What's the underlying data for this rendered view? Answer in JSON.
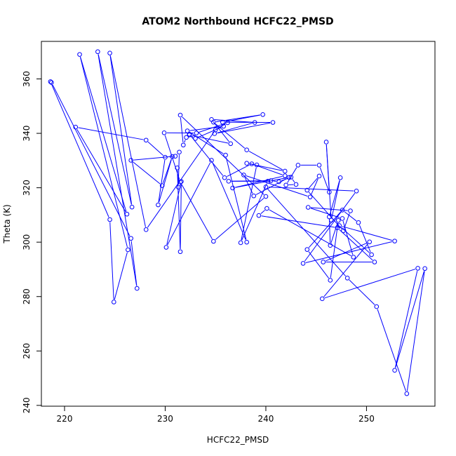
{
  "chart_data": {
    "type": "line",
    "title": "ATOM2 Northbound HCFC22_PMSD",
    "xlabel": "HCFC22_PMSD",
    "ylabel": "Theta (K)",
    "xlim": [
      217.7,
      256.8
    ],
    "ylim": [
      239.7,
      373.8
    ],
    "x_ticks": [
      220,
      230,
      240,
      250
    ],
    "y_ticks": [
      240,
      260,
      280,
      300,
      320,
      340,
      360
    ],
    "grid": false,
    "line_color": "#0000ff",
    "marker": "open-circle",
    "series": [
      {
        "points": [
          {
            "x": 218.6,
            "y": 359.0
          },
          {
            "x": 224.5,
            "y": 308.3
          },
          {
            "x": 224.9,
            "y": 278.0
          },
          {
            "x": 226.3,
            "y": 297.2
          },
          {
            "x": 221.5,
            "y": 369.0
          },
          {
            "x": 226.2,
            "y": 310.3
          },
          {
            "x": 221.1,
            "y": 342.3
          },
          {
            "x": 228.1,
            "y": 337.5
          },
          {
            "x": 230.0,
            "y": 331.2
          },
          {
            "x": 229.3,
            "y": 313.7
          },
          {
            "x": 230.7,
            "y": 331.5
          },
          {
            "x": 229.7,
            "y": 320.8
          },
          {
            "x": 226.6,
            "y": 330.1
          },
          {
            "x": 231.0,
            "y": 331.6
          },
          {
            "x": 231.4,
            "y": 333.1
          },
          {
            "x": 231.3,
            "y": 320.2
          },
          {
            "x": 231.2,
            "y": 327.3
          },
          {
            "x": 231.5,
            "y": 296.5
          },
          {
            "x": 231.6,
            "y": 322.3
          },
          {
            "x": 230.1,
            "y": 298.1
          },
          {
            "x": 234.6,
            "y": 330.1
          },
          {
            "x": 238.1,
            "y": 300.0
          },
          {
            "x": 236.0,
            "y": 332.0
          },
          {
            "x": 232.2,
            "y": 340.9
          },
          {
            "x": 235.8,
            "y": 342.6
          },
          {
            "x": 233.0,
            "y": 338.1
          },
          {
            "x": 232.4,
            "y": 339.4
          },
          {
            "x": 236.5,
            "y": 336.2
          },
          {
            "x": 234.6,
            "y": 345.1
          },
          {
            "x": 238.9,
            "y": 344.0
          },
          {
            "x": 234.9,
            "y": 339.9
          },
          {
            "x": 240.7,
            "y": 344.0
          },
          {
            "x": 235.7,
            "y": 344.1
          },
          {
            "x": 239.7,
            "y": 346.9
          },
          {
            "x": 234.8,
            "y": 344.1
          },
          {
            "x": 238.1,
            "y": 333.9
          },
          {
            "x": 241.9,
            "y": 326.1
          },
          {
            "x": 238.1,
            "y": 329.0
          },
          {
            "x": 239.1,
            "y": 328.4
          },
          {
            "x": 237.5,
            "y": 299.8
          },
          {
            "x": 240.2,
            "y": 322.4
          },
          {
            "x": 236.3,
            "y": 322.4
          },
          {
            "x": 240.5,
            "y": 322.6
          },
          {
            "x": 241.3,
            "y": 322.2
          },
          {
            "x": 242.5,
            "y": 323.9
          },
          {
            "x": 243.0,
            "y": 321.2
          },
          {
            "x": 242.0,
            "y": 321.0
          },
          {
            "x": 243.2,
            "y": 328.3
          },
          {
            "x": 245.3,
            "y": 328.3
          },
          {
            "x": 246.3,
            "y": 318.4
          },
          {
            "x": 246.0,
            "y": 336.8
          },
          {
            "x": 246.5,
            "y": 308.1
          },
          {
            "x": 247.4,
            "y": 323.7
          },
          {
            "x": 246.3,
            "y": 309.3
          },
          {
            "x": 246.4,
            "y": 298.8
          },
          {
            "x": 247.2,
            "y": 308.0
          },
          {
            "x": 246.4,
            "y": 286.0
          },
          {
            "x": 244.1,
            "y": 297.3
          },
          {
            "x": 247.6,
            "y": 311.8
          },
          {
            "x": 249.2,
            "y": 307.2
          },
          {
            "x": 250.5,
            "y": 295.4
          },
          {
            "x": 247.3,
            "y": 306.1
          },
          {
            "x": 252.8,
            "y": 300.4
          },
          {
            "x": 243.7,
            "y": 292.2
          },
          {
            "x": 249.0,
            "y": 318.8
          },
          {
            "x": 240.0,
            "y": 320.3
          },
          {
            "x": 248.1,
            "y": 286.8
          },
          {
            "x": 251.0,
            "y": 276.3
          },
          {
            "x": 254.0,
            "y": 244.3
          },
          {
            "x": 255.8,
            "y": 290.3
          },
          {
            "x": 252.8,
            "y": 252.9
          },
          {
            "x": 255.1,
            "y": 290.4
          },
          {
            "x": 245.6,
            "y": 279.2
          },
          {
            "x": 250.3,
            "y": 300.1
          },
          {
            "x": 245.7,
            "y": 292.7
          },
          {
            "x": 250.8,
            "y": 292.7
          },
          {
            "x": 247.1,
            "y": 305.3
          },
          {
            "x": 239.3,
            "y": 309.8
          },
          {
            "x": 240.1,
            "y": 312.4
          },
          {
            "x": 248.7,
            "y": 294.5
          },
          {
            "x": 247.6,
            "y": 308.7
          },
          {
            "x": 244.2,
            "y": 312.8
          },
          {
            "x": 248.4,
            "y": 311.5
          },
          {
            "x": 247.7,
            "y": 304.2
          },
          {
            "x": 244.1,
            "y": 319.1
          },
          {
            "x": 245.3,
            "y": 324.3
          },
          {
            "x": 244.4,
            "y": 316.6
          },
          {
            "x": 237.8,
            "y": 324.7
          },
          {
            "x": 238.8,
            "y": 317.0
          },
          {
            "x": 242.3,
            "y": 323.8
          },
          {
            "x": 236.7,
            "y": 319.9
          },
          {
            "x": 241.9,
            "y": 324.4
          },
          {
            "x": 238.6,
            "y": 328.8
          },
          {
            "x": 235.9,
            "y": 323.7
          },
          {
            "x": 232.4,
            "y": 339.7
          },
          {
            "x": 232.1,
            "y": 338.5
          },
          {
            "x": 231.8,
            "y": 335.7
          },
          {
            "x": 231.5,
            "y": 346.7
          },
          {
            "x": 240.0,
            "y": 316.8
          },
          {
            "x": 234.8,
            "y": 300.3
          },
          {
            "x": 231.5,
            "y": 322.1
          },
          {
            "x": 229.9,
            "y": 340.2
          },
          {
            "x": 233.1,
            "y": 340.1
          },
          {
            "x": 236.2,
            "y": 343.9
          },
          {
            "x": 235.0,
            "y": 341.3
          },
          {
            "x": 228.1,
            "y": 304.6
          },
          {
            "x": 224.5,
            "y": 369.5
          },
          {
            "x": 226.7,
            "y": 312.9
          },
          {
            "x": 223.3,
            "y": 370.0
          },
          {
            "x": 227.2,
            "y": 283.0
          },
          {
            "x": 226.6,
            "y": 301.4
          },
          {
            "x": 218.7,
            "y": 358.7
          }
        ]
      }
    ]
  }
}
